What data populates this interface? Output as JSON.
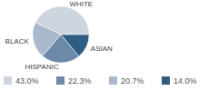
{
  "chart_data": {
    "type": "pie",
    "categories": [
      "WHITE",
      "ASIAN",
      "HISPANIC",
      "BLACK"
    ],
    "values": [
      43.0,
      14.0,
      22.3,
      20.7
    ],
    "value_labels": [
      "43.0%",
      "14.0%",
      "22.3%",
      "20.7%"
    ],
    "colors": [
      "#cdd5df",
      "#2f5d84",
      "#6d89aa",
      "#a9b8cb"
    ],
    "legend": "bottom"
  }
}
